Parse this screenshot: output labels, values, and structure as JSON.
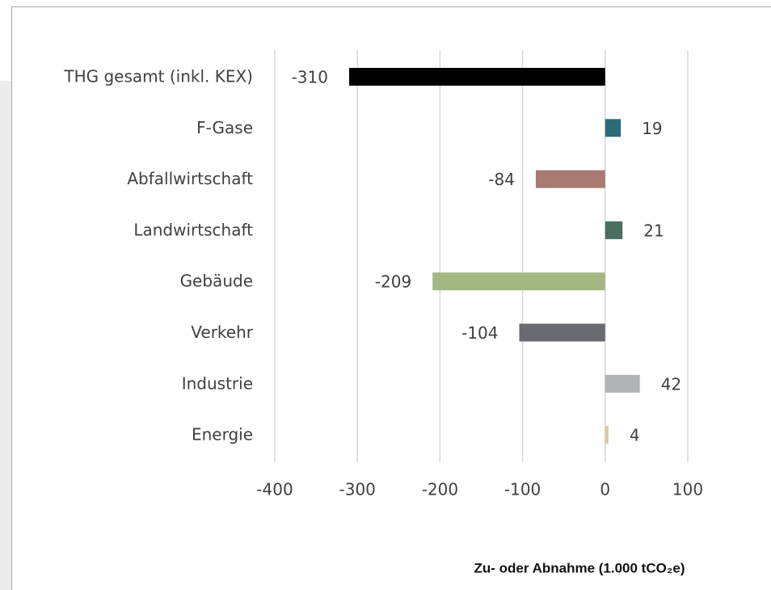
{
  "chart_data": {
    "type": "bar",
    "orientation": "horizontal",
    "x_label": "Zu- oder Abnahme (1.000 tCO₂e)",
    "categories": [
      "THG gesamt (inkl. KEX)",
      "F-Gase",
      "Abfallwirtschaft",
      "Landwirtschaft",
      "Gebäude",
      "Verkehr",
      "Industrie",
      "Energie"
    ],
    "values": [
      -310,
      19,
      -84,
      21,
      -209,
      -104,
      42,
      4
    ],
    "colors": [
      "#000000",
      "#2e6b78",
      "#a77a72",
      "#4b6f5f",
      "#a4b783",
      "#6a6a71",
      "#b0b4b7",
      "#d8caa2"
    ],
    "xlim": [
      -400,
      100
    ],
    "xticks": [
      -400,
      -300,
      -200,
      -100,
      0,
      100
    ],
    "grid": true
  }
}
